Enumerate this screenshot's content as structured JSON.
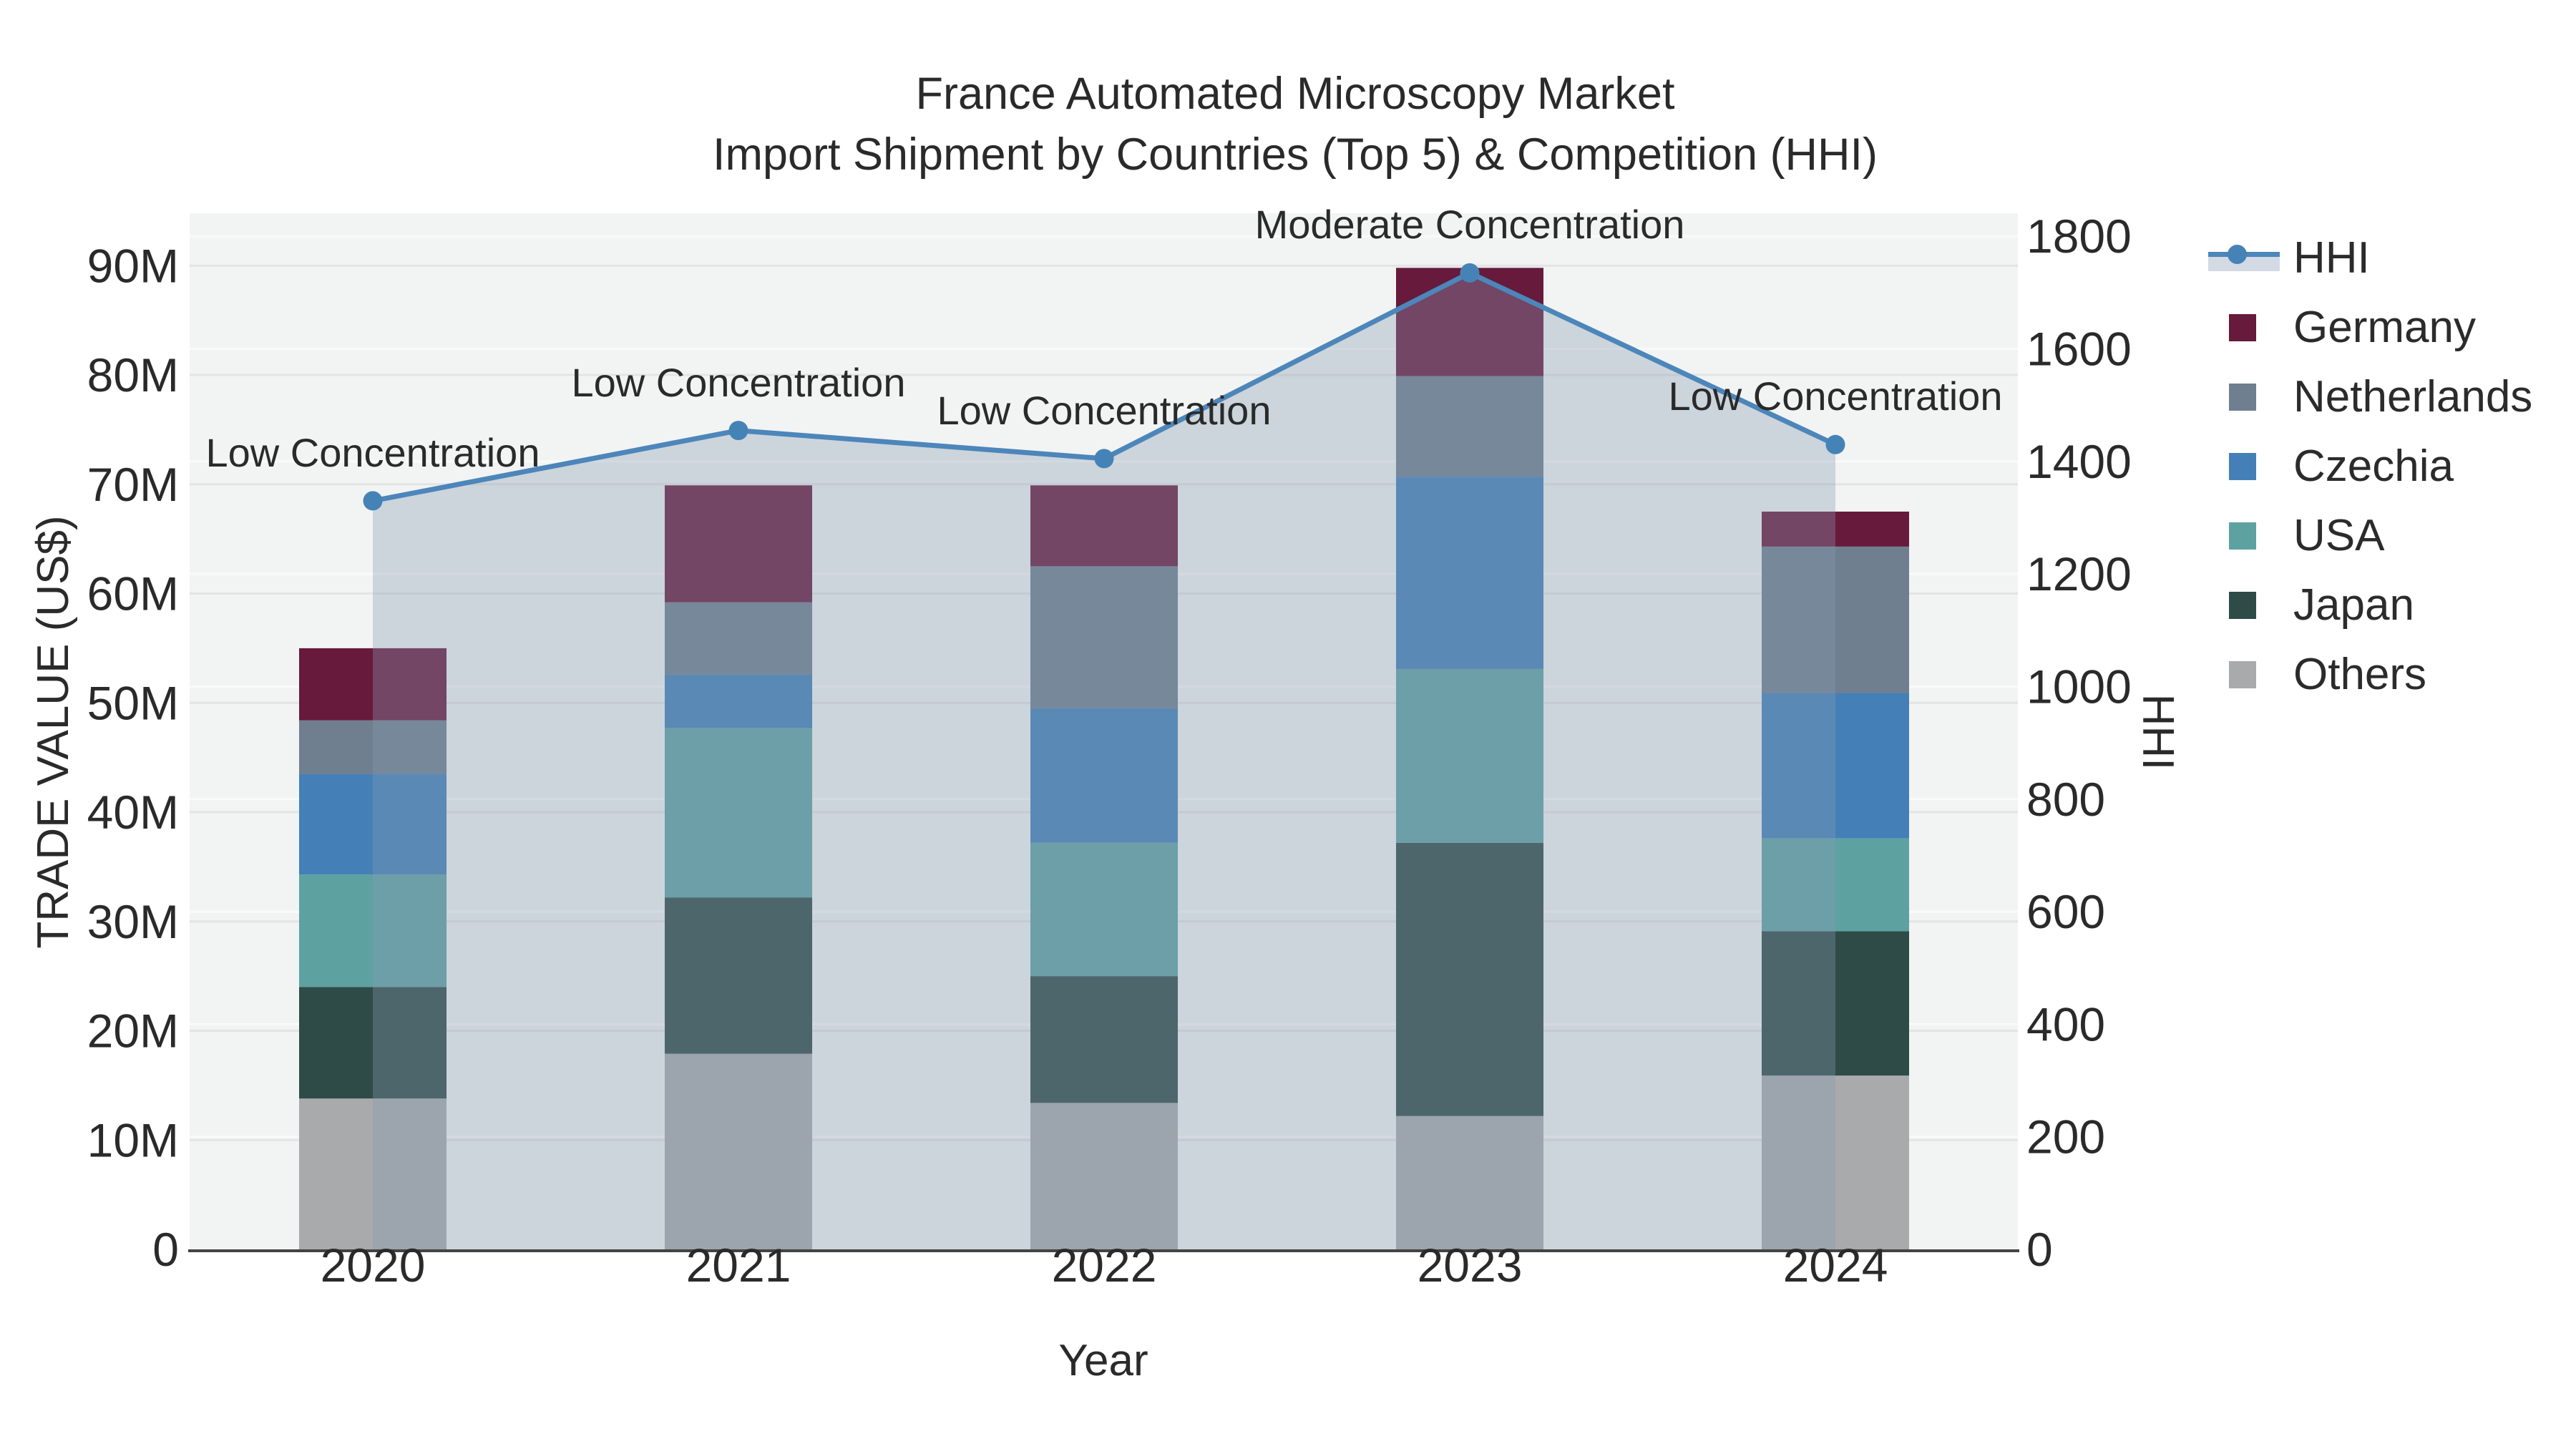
{
  "title": {
    "line1": "France Automated Microscopy Market",
    "line2": "Import Shipment by Countries (Top 5) & Competition (HHI)"
  },
  "chart_data": {
    "type": "stacked-bar+line-dual-axis",
    "categories": [
      "2020",
      "2021",
      "2022",
      "2023",
      "2024"
    ],
    "unit": "M US$",
    "series": [
      {
        "name": "Others",
        "color": "#a8aaab",
        "values": [
          13.8,
          17.9,
          13.4,
          12.2,
          15.9
        ]
      },
      {
        "name": "Japan",
        "color": "#2e4b47",
        "values": [
          10.2,
          14.3,
          11.6,
          25.0,
          13.2
        ]
      },
      {
        "name": "USA",
        "color": "#5ea1a1",
        "values": [
          10.3,
          15.5,
          12.2,
          15.9,
          8.5
        ]
      },
      {
        "name": "Czechia",
        "color": "#4480b7",
        "values": [
          9.2,
          4.9,
          12.3,
          17.6,
          13.3
        ]
      },
      {
        "name": "Netherlands",
        "color": "#6f7f90",
        "values": [
          4.9,
          6.6,
          13.0,
          9.2,
          13.4
        ]
      },
      {
        "name": "Germany",
        "color": "#671a3b",
        "values": [
          6.6,
          10.7,
          7.4,
          9.9,
          3.2
        ]
      }
    ],
    "totals": [
      55.0,
      69.9,
      69.9,
      89.8,
      67.5
    ],
    "line_series": {
      "name": "HHI",
      "axis": "right",
      "line_color": "#4c86ba",
      "marker_color": "#4583b7",
      "fill_color": "rgba(136,154,177,0.35)",
      "values": [
        1330,
        1455,
        1405,
        1735,
        1430
      ]
    },
    "annotations": [
      {
        "x": "2020",
        "text": "Low Concentration"
      },
      {
        "x": "2021",
        "text": "Low Concentration"
      },
      {
        "x": "2022",
        "text": "Low Concentration"
      },
      {
        "x": "2023",
        "text": "Moderate Concentration"
      },
      {
        "x": "2024",
        "text": "Low Concentration"
      }
    ],
    "axes": {
      "x": {
        "label": "Year"
      },
      "left": {
        "label": "TRADE VALUE (US$)",
        "max": 94.8,
        "ticks": [
          {
            "v": 0,
            "t": "0"
          },
          {
            "v": 10,
            "t": "10M"
          },
          {
            "v": 20,
            "t": "20M"
          },
          {
            "v": 30,
            "t": "30M"
          },
          {
            "v": 40,
            "t": "40M"
          },
          {
            "v": 50,
            "t": "50M"
          },
          {
            "v": 60,
            "t": "60M"
          },
          {
            "v": 70,
            "t": "70M"
          },
          {
            "v": 80,
            "t": "80M"
          },
          {
            "v": 90,
            "t": "90M"
          }
        ]
      },
      "right": {
        "label": "HHI",
        "max": 1841,
        "ticks": [
          {
            "v": 0,
            "t": "0"
          },
          {
            "v": 200,
            "t": "200"
          },
          {
            "v": 400,
            "t": "400"
          },
          {
            "v": 600,
            "t": "600"
          },
          {
            "v": 800,
            "t": "800"
          },
          {
            "v": 1000,
            "t": "1000"
          },
          {
            "v": 1200,
            "t": "1200"
          },
          {
            "v": 1400,
            "t": "1400"
          },
          {
            "v": 1600,
            "t": "1600"
          },
          {
            "v": 1800,
            "t": "1800"
          }
        ]
      }
    },
    "legend_order": [
      "HHI",
      "Germany",
      "Netherlands",
      "Czechia",
      "USA",
      "Japan",
      "Others"
    ],
    "style": {
      "plot_bg": "#f2f3f3",
      "grid_left_color": "#e4e4e4",
      "grid_right_color": "#fafafa",
      "axis_line_color": "#444444"
    }
  }
}
